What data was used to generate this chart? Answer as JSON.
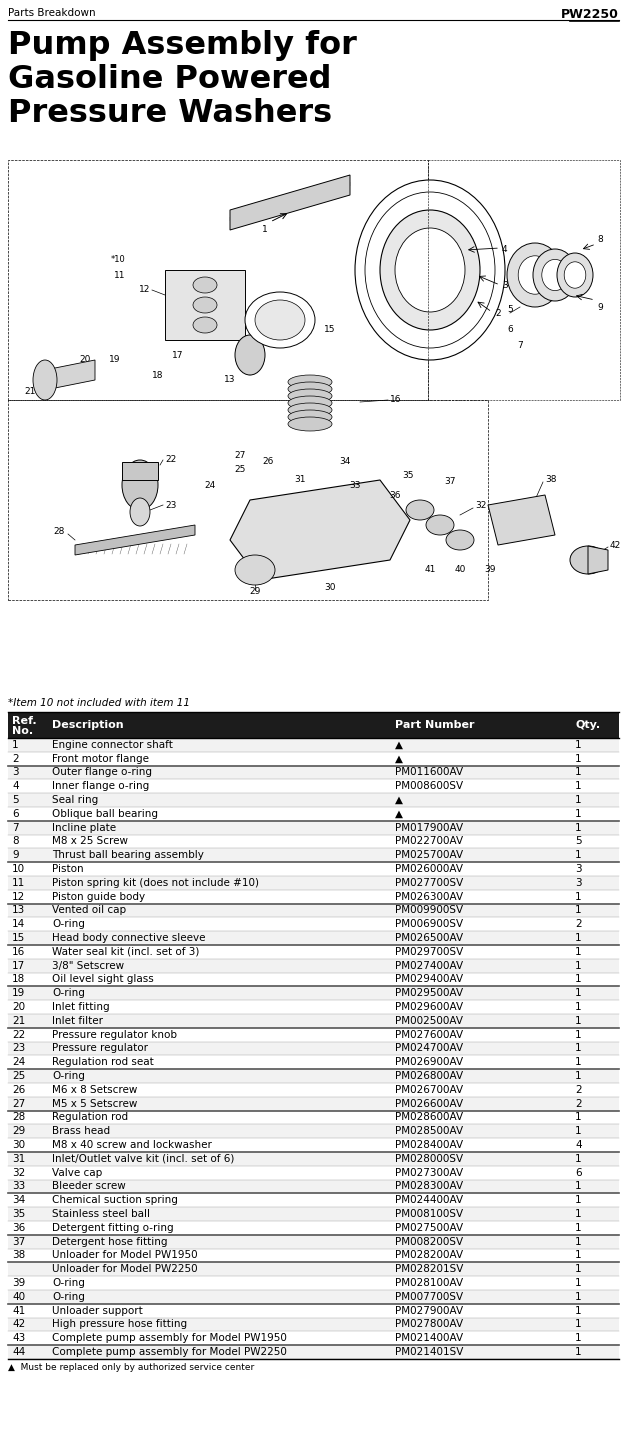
{
  "header_left": "Parts Breakdown",
  "header_right": "PW2250",
  "title_line1": "Pump Assembly for",
  "title_line2": "Gasoline Powered",
  "title_line3": "Pressure Washers",
  "footnote_diagram": "*Item 10 not included with item 11",
  "footnote_table": "▲  Must be replaced only by authorized service center",
  "rows": [
    [
      "1",
      "Engine connector shaft",
      "▲",
      "1"
    ],
    [
      "2",
      "Front motor flange",
      "▲",
      "1"
    ],
    [
      "3",
      "Outer flange o-ring",
      "PM011600AV",
      "1"
    ],
    [
      "4",
      "Inner flange o-ring",
      "PM008600SV",
      "1"
    ],
    [
      "5",
      "Seal ring",
      "▲",
      "1"
    ],
    [
      "6",
      "Oblique ball bearing",
      "▲",
      "1"
    ],
    [
      "7",
      "Incline plate",
      "PM017900AV",
      "1"
    ],
    [
      "8",
      "M8 x 25 Screw",
      "PM022700AV",
      "5"
    ],
    [
      "9",
      "Thrust ball bearing assembly",
      "PM025700AV",
      "1"
    ],
    [
      "10",
      "Piston",
      "PM026000AV",
      "3"
    ],
    [
      "11",
      "Piston spring kit (does not include #10)",
      "PM027700SV",
      "3"
    ],
    [
      "12",
      "Piston guide body",
      "PM026300AV",
      "1"
    ],
    [
      "13",
      "Vented oil cap",
      "PM009900SV",
      "1"
    ],
    [
      "14",
      "O-ring",
      "PM006900SV",
      "2"
    ],
    [
      "15",
      "Head body connective sleeve",
      "PM026500AV",
      "1"
    ],
    [
      "16",
      "Water seal kit (incl. set of 3)",
      "PM029700SV",
      "1"
    ],
    [
      "17",
      "3/8\" Setscrew",
      "PM027400AV",
      "1"
    ],
    [
      "18",
      "Oil level sight glass",
      "PM029400AV",
      "1"
    ],
    [
      "19",
      "O-ring",
      "PM029500AV",
      "1"
    ],
    [
      "20",
      "Inlet fitting",
      "PM029600AV",
      "1"
    ],
    [
      "21",
      "Inlet filter",
      "PM002500AV",
      "1"
    ],
    [
      "22",
      "Pressure regulator knob",
      "PM027600AV",
      "1"
    ],
    [
      "23",
      "Pressure regulator",
      "PM024700AV",
      "1"
    ],
    [
      "24",
      "Regulation rod seat",
      "PM026900AV",
      "1"
    ],
    [
      "25",
      "O-ring",
      "PM026800AV",
      "1"
    ],
    [
      "26",
      "M6 x 8 Setscrew",
      "PM026700AV",
      "2"
    ],
    [
      "27",
      "M5 x 5 Setscrew",
      "PM026600AV",
      "2"
    ],
    [
      "28",
      "Regulation rod",
      "PM028600AV",
      "1"
    ],
    [
      "29",
      "Brass head",
      "PM028500AV",
      "1"
    ],
    [
      "30",
      "M8 x 40 screw and lockwasher",
      "PM028400AV",
      "4"
    ],
    [
      "31",
      "Inlet/Outlet valve kit (incl. set of 6)",
      "PM028000SV",
      "1"
    ],
    [
      "32",
      "Valve cap",
      "PM027300AV",
      "6"
    ],
    [
      "33",
      "Bleeder screw",
      "PM028300AV",
      "1"
    ],
    [
      "34",
      "Chemical suction spring",
      "PM024400AV",
      "1"
    ],
    [
      "35",
      "Stainless steel ball",
      "PM008100SV",
      "1"
    ],
    [
      "36",
      "Detergent fitting o-ring",
      "PM027500AV",
      "1"
    ],
    [
      "37",
      "Detergent hose fitting",
      "PM008200SV",
      "1"
    ],
    [
      "38",
      "Unloader for Model PW1950",
      "PM028200AV",
      "1"
    ],
    [
      "",
      "Unloader for Model PW2250",
      "PM028201SV",
      "1"
    ],
    [
      "39",
      "O-ring",
      "PM028100AV",
      "1"
    ],
    [
      "40",
      "O-ring",
      "PM007700SV",
      "1"
    ],
    [
      "41",
      "Unloader support",
      "PM027900AV",
      "1"
    ],
    [
      "42",
      "High pressure hose fitting",
      "PM027800AV",
      "1"
    ],
    [
      "43",
      "Complete pump assembly for Model PW1950",
      "PM021400AV",
      "1"
    ],
    [
      "44",
      "Complete pump assembly for Model PW2250",
      "PM021401SV",
      "1"
    ]
  ],
  "thick_borders_after_rows": [
    1,
    5,
    8,
    11,
    14,
    17,
    20,
    23,
    26,
    29,
    32,
    35,
    37,
    40,
    43
  ],
  "header_bg": "#1c1c1c",
  "bg_color": "#ffffff"
}
